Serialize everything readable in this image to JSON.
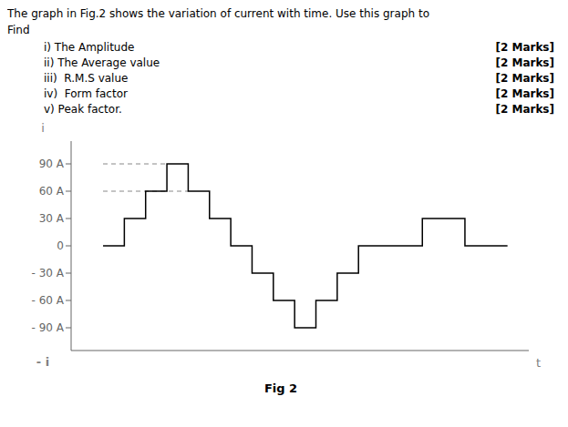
{
  "chart_data": {
    "type": "line",
    "title": "The graph in Fig.2 shows the variation of current with time. Use this graph to",
    "subtitle": "Find",
    "annotations": [
      {
        "text": "i) The Amplitude",
        "marks": "[2 Marks]"
      },
      {
        "text": "ii) The Average value",
        "marks": "[2 Marks]"
      },
      {
        "text": "iii)  R.M.S value",
        "marks": "[2 Marks]"
      },
      {
        "text": "iv)  Form factor",
        "marks": "[2 Marks]"
      },
      {
        "text": "v) Peak factor.",
        "marks": "[2 Marks]"
      }
    ],
    "caption": "Fig 2",
    "xlabel": "t",
    "ylabel": "i",
    "ylabel_bottom": "- i",
    "x": [
      0,
      1,
      1,
      2,
      2,
      3,
      3,
      4,
      4,
      5,
      5,
      6,
      6,
      7,
      7,
      8,
      8,
      9,
      9,
      10,
      10,
      11,
      11,
      12,
      12,
      13,
      13,
      14,
      14,
      15,
      15,
      16,
      16,
      17,
      17,
      18,
      18,
      19
    ],
    "values": [
      0,
      0,
      30,
      30,
      60,
      60,
      90,
      90,
      60,
      60,
      30,
      30,
      0,
      0,
      -30,
      -30,
      -60,
      -60,
      -90,
      -90,
      -60,
      -60,
      -30,
      -30,
      0,
      0,
      0,
      0,
      0,
      0,
      30,
      30,
      30,
      30,
      0,
      0,
      0,
      0
    ],
    "color": "#000000",
    "reference_lines": [
      {
        "y": 90,
        "x": [
          0,
          3
        ],
        "color": "#888888",
        "line_style": "dashed"
      },
      {
        "y": 60,
        "x": [
          0,
          4
        ],
        "color": "#888888",
        "line_style": "dashed"
      }
    ],
    "xlim": [
      -1.5,
      20
    ],
    "ylim": [
      -115,
      115
    ],
    "yticks": [
      {
        "value": -90,
        "label": "- 90 A"
      },
      {
        "value": -60,
        "label": "- 60 A"
      },
      {
        "value": -30,
        "label": "- 30 A"
      },
      0,
      {
        "value": 30,
        "label": "30 A"
      },
      {
        "value": 60,
        "label": "60 A"
      },
      {
        "value": 90,
        "label": "90 A"
      }
    ],
    "tick_labels": "y",
    "grid": false
  }
}
